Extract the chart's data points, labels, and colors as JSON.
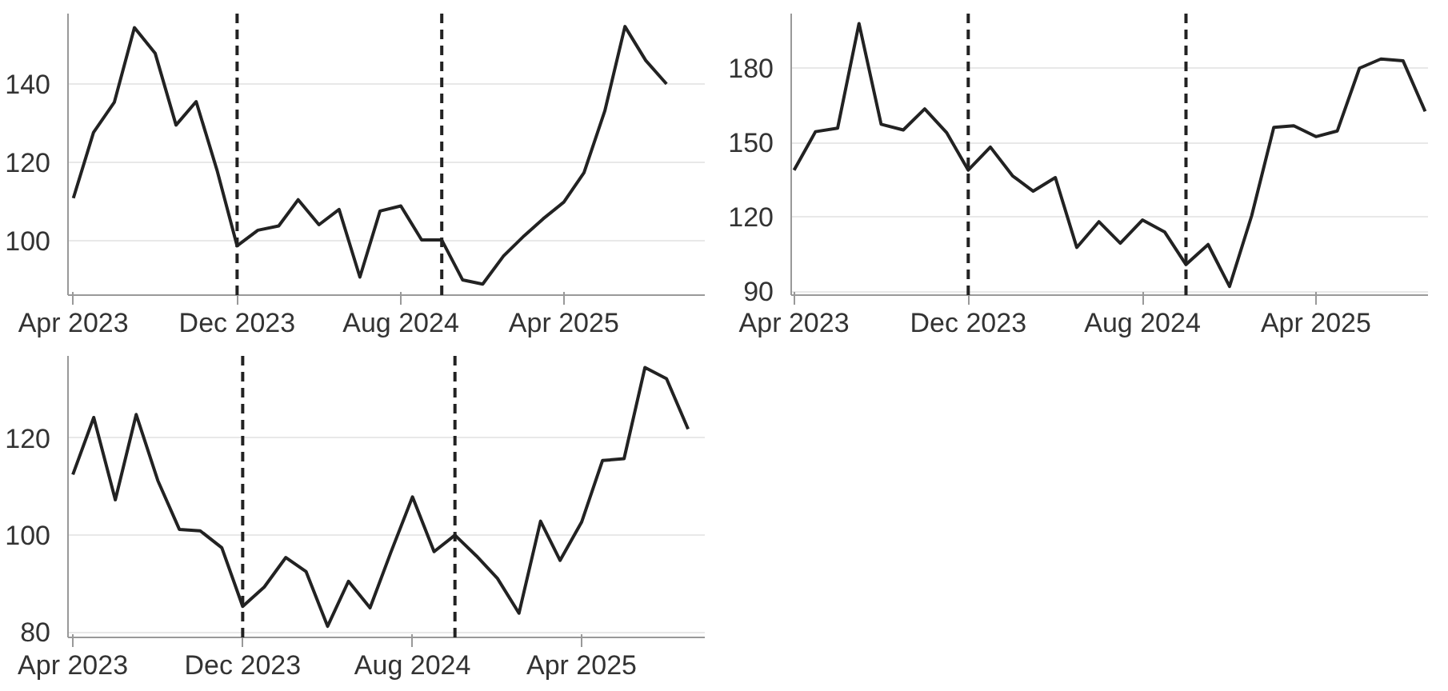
{
  "chart_data": [
    {
      "type": "line",
      "x": [
        "2023-04",
        "2023-05",
        "2023-06",
        "2023-07",
        "2023-08",
        "2023-09",
        "2023-10",
        "2023-11",
        "2023-12",
        "2024-01",
        "2024-02",
        "2024-03",
        "2024-04",
        "2024-05",
        "2024-06",
        "2024-07",
        "2024-08",
        "2024-09",
        "2024-10",
        "2024-11",
        "2024-12",
        "2025-01",
        "2025-02",
        "2025-03",
        "2025-04",
        "2025-05",
        "2025-06",
        "2025-07",
        "2025-08",
        "2025-09"
      ],
      "series": [
        {
          "color": "#222222",
          "values": [
            110.8,
            127.6,
            135.3,
            154.4,
            147.8,
            129.5,
            135.5,
            118,
            98.6,
            102.6,
            103.7,
            110.4,
            104,
            107.9,
            90.6,
            107.5,
            108.8,
            100.1,
            100.1,
            89.9,
            88.8,
            96,
            101.2,
            105.5,
            109.8,
            117.3,
            133.1,
            154.7,
            146,
            140
          ]
        }
      ],
      "xlim": [
        "2023-03-24",
        "2025-10-28"
      ],
      "ylim": [
        86,
        158
      ],
      "xticks": [
        {
          "value": "2023-04",
          "label": "Apr 2023"
        },
        {
          "value": "2023-12",
          "label": "Dec 2023"
        },
        {
          "value": "2024-08",
          "label": "Aug 2024"
        },
        {
          "value": "2025-04",
          "label": "Apr 2025"
        }
      ],
      "yticks": [
        100,
        120,
        140
      ],
      "grid": "y",
      "line_style": "solid",
      "ref_lines": [
        {
          "axis": "x",
          "value": "2023-12",
          "color": "#222222",
          "line_style": "dashed"
        },
        {
          "axis": "x",
          "value": "2024-10",
          "color": "#222222",
          "line_style": "dashed"
        }
      ]
    },
    {
      "type": "line",
      "x": [
        "2023-04",
        "2023-05",
        "2023-06",
        "2023-07",
        "2023-08",
        "2023-09",
        "2023-10",
        "2023-11",
        "2023-12",
        "2024-01",
        "2024-02",
        "2024-03",
        "2024-04",
        "2024-05",
        "2024-06",
        "2024-07",
        "2024-08",
        "2024-09",
        "2024-10",
        "2024-11",
        "2024-12",
        "2025-01",
        "2025-02",
        "2025-03",
        "2025-04",
        "2025-05",
        "2025-06",
        "2025-07",
        "2025-08",
        "2025-09"
      ],
      "series": [
        {
          "color": "#222222",
          "values": [
            138.9,
            154.4,
            155.8,
            198,
            157.4,
            155.1,
            163.6,
            153.9,
            138.9,
            148.2,
            136.6,
            130.4,
            135.9,
            107.7,
            118.1,
            109.4,
            118.8,
            114,
            100.8,
            108.9,
            92,
            120.5,
            156.1,
            156.8,
            152.4,
            154.7,
            180,
            183.7,
            183,
            162.6
          ]
        }
      ],
      "xlim": [
        "2023-03-28",
        "2025-09-05"
      ],
      "ylim": [
        88.5,
        202
      ],
      "xticks": [
        {
          "value": "2023-04",
          "label": "Apr 2023"
        },
        {
          "value": "2023-12",
          "label": "Dec 2023"
        },
        {
          "value": "2024-08",
          "label": "Aug 2024"
        },
        {
          "value": "2025-04",
          "label": "Apr 2025"
        }
      ],
      "yticks": [
        90,
        120,
        150,
        180
      ],
      "grid": "y",
      "line_style": "solid",
      "ref_lines": [
        {
          "axis": "x",
          "value": "2023-12",
          "color": "#222222",
          "line_style": "dashed"
        },
        {
          "axis": "x",
          "value": "2024-10",
          "color": "#222222",
          "line_style": "dashed"
        }
      ]
    },
    {
      "type": "line",
      "x": [
        "2023-04",
        "2023-05",
        "2023-06",
        "2023-07",
        "2023-08",
        "2023-09",
        "2023-10",
        "2023-11",
        "2023-12",
        "2024-01",
        "2024-02",
        "2024-03",
        "2024-04",
        "2024-05",
        "2024-06",
        "2024-07",
        "2024-08",
        "2024-09",
        "2024-10",
        "2024-11",
        "2024-12",
        "2025-01",
        "2025-02",
        "2025-03",
        "2025-04",
        "2025-05",
        "2025-06",
        "2025-07",
        "2025-08",
        "2025-09"
      ],
      "series": [
        {
          "color": "#222222",
          "values": [
            112.5,
            124.3,
            107.3,
            124.9,
            111.3,
            101.2,
            100.9,
            97.4,
            85.3,
            89.3,
            95.4,
            92.5,
            81.2,
            90.5,
            85,
            96.5,
            107.9,
            96.6,
            100,
            95.7,
            91.1,
            83.9,
            102.9,
            94.8,
            102.7,
            115.4,
            115.8,
            134.6,
            132.3,
            121.9
          ]
        }
      ],
      "xlim": [
        "2023-03-25",
        "2025-09-25"
      ],
      "ylim": [
        78.9,
        137
      ],
      "xticks": [
        {
          "value": "2023-04",
          "label": "Apr 2023"
        },
        {
          "value": "2023-12",
          "label": "Dec 2023"
        },
        {
          "value": "2024-08",
          "label": "Aug 2024"
        },
        {
          "value": "2025-04",
          "label": "Apr 2025"
        }
      ],
      "yticks": [
        80,
        100,
        120
      ],
      "grid": "y",
      "line_style": "solid",
      "ref_lines": [
        {
          "axis": "x",
          "value": "2023-12",
          "color": "#222222",
          "line_style": "dashed"
        },
        {
          "axis": "x",
          "value": "2024-10",
          "color": "#222222",
          "line_style": "dashed"
        }
      ]
    }
  ]
}
